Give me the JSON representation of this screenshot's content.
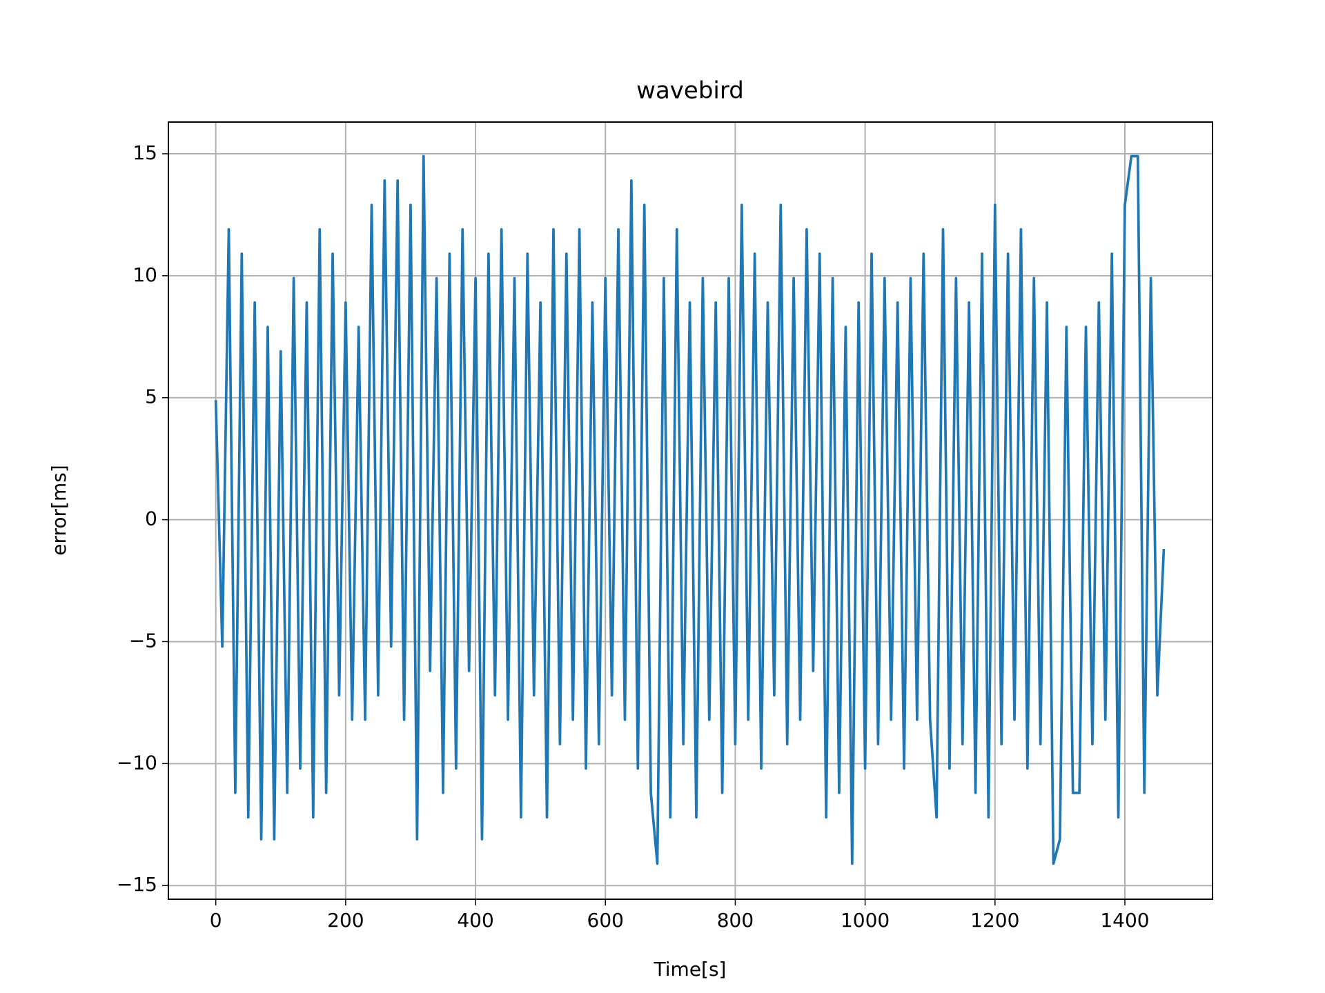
{
  "chart_data": {
    "type": "line",
    "title": "wavebird",
    "xlabel": "Time[s]",
    "ylabel": "error[ms]",
    "x": [
      0,
      10,
      20,
      30,
      40,
      50,
      60,
      70,
      80,
      90,
      100,
      110,
      120,
      130,
      140,
      150,
      160,
      170,
      180,
      190,
      200,
      210,
      220,
      230,
      240,
      250,
      260,
      270,
      280,
      290,
      300,
      310,
      320,
      330,
      340,
      350,
      360,
      370,
      380,
      390,
      400,
      410,
      420,
      430,
      440,
      450,
      460,
      470,
      480,
      490,
      500,
      510,
      520,
      530,
      540,
      550,
      560,
      570,
      580,
      590,
      600,
      610,
      620,
      630,
      640,
      650,
      660,
      670,
      680,
      690,
      700,
      710,
      720,
      730,
      740,
      750,
      760,
      770,
      780,
      790,
      800,
      810,
      820,
      830,
      840,
      850,
      860,
      870,
      880,
      890,
      900,
      910,
      920,
      930,
      940,
      950,
      960,
      970,
      980,
      990,
      1000,
      1010,
      1020,
      1030,
      1040,
      1050,
      1060,
      1070,
      1080,
      1090,
      1100,
      1110,
      1120,
      1130,
      1140,
      1150,
      1160,
      1170,
      1180,
      1190,
      1200,
      1210,
      1220,
      1230,
      1240,
      1250,
      1260,
      1270,
      1280,
      1290,
      1300,
      1310,
      1320,
      1330,
      1340,
      1350,
      1360,
      1370,
      1380,
      1390,
      1400,
      1410,
      1420,
      1430,
      1440,
      1450,
      1460
    ],
    "series": [
      {
        "name": "error",
        "color": "#1f77b4",
        "values": [
          4.9,
          -5.2,
          11.9,
          -11.2,
          10.9,
          -12.2,
          8.9,
          -13.1,
          7.9,
          -13.1,
          6.9,
          -11.2,
          9.9,
          -10.2,
          8.9,
          -12.2,
          11.9,
          -11.2,
          10.9,
          -7.2,
          8.9,
          -8.2,
          7.9,
          -8.2,
          12.9,
          -7.2,
          13.9,
          -5.2,
          13.9,
          -8.2,
          12.9,
          -13.1,
          14.9,
          -6.2,
          9.9,
          -11.2,
          10.9,
          -10.2,
          11.9,
          -6.2,
          9.9,
          -13.1,
          10.9,
          -7.2,
          11.9,
          -8.2,
          9.9,
          -12.2,
          10.9,
          -7.2,
          8.9,
          -12.2,
          11.9,
          -9.2,
          10.9,
          -8.2,
          11.9,
          -10.2,
          8.9,
          -9.2,
          9.9,
          -7.2,
          11.9,
          -8.2,
          13.9,
          -10.2,
          12.9,
          -11.2,
          -14.1,
          9.9,
          -12.2,
          11.9,
          -9.2,
          8.9,
          -12.2,
          9.9,
          -8.2,
          8.9,
          -11.2,
          9.9,
          -9.2,
          12.9,
          -8.2,
          10.9,
          -10.2,
          8.9,
          -7.2,
          12.9,
          -9.2,
          9.9,
          -8.2,
          11.9,
          -6.2,
          10.9,
          -12.2,
          9.9,
          -11.2,
          7.9,
          -14.1,
          8.9,
          -10.2,
          10.9,
          -9.2,
          9.9,
          -8.2,
          8.9,
          -10.2,
          9.9,
          -8.2,
          10.9,
          -8.2,
          -12.2,
          11.9,
          -10.2,
          9.9,
          -9.2,
          8.9,
          -11.2,
          10.9,
          -12.2,
          12.9,
          -9.2,
          10.9,
          -8.2,
          11.9,
          -10.2,
          9.9,
          -9.2,
          8.9,
          -14.1,
          -13.1,
          7.9,
          -11.2,
          -11.2,
          7.9,
          -9.2,
          8.9,
          -8.2,
          10.9,
          -12.2,
          12.9,
          14.9,
          14.9,
          -11.2,
          9.9,
          -7.2,
          -1.2
        ]
      }
    ],
    "xlim": [
      -73,
      1535
    ],
    "ylim": [
      -15.56,
      16.3
    ],
    "xticks": [
      0,
      200,
      400,
      600,
      800,
      1000,
      1200,
      1400
    ],
    "yticks": [
      {
        "value": -15,
        "label": "−15"
      },
      {
        "value": -10,
        "label": "−10"
      },
      {
        "value": -5,
        "label": "−5"
      },
      0,
      5,
      10,
      15
    ],
    "grid": true
  }
}
